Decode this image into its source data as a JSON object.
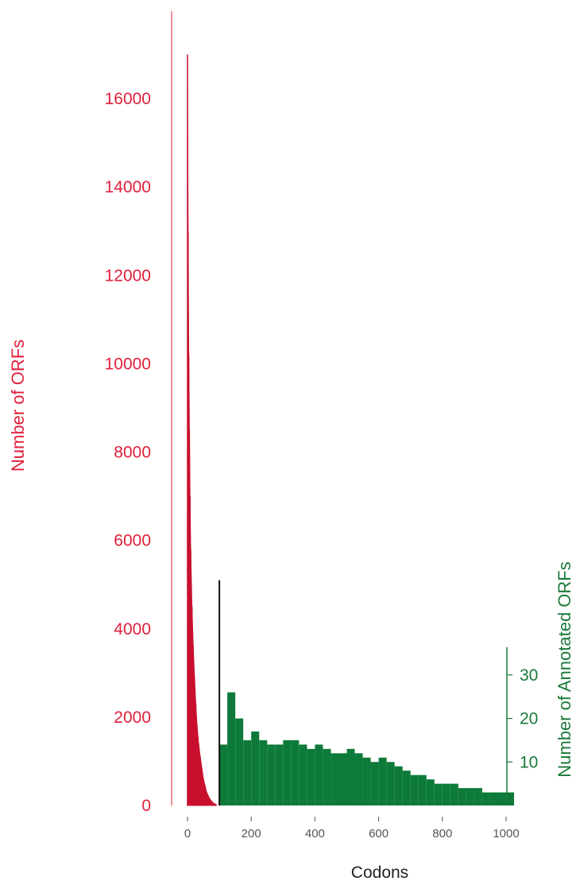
{
  "chart_data": {
    "type": "bar",
    "xlabel": "Codons",
    "ylabel_left": "Number of ORFs",
    "ylabel_right": "Number of Annotated ORFs",
    "x_ticks": [
      0,
      200,
      400,
      600,
      800,
      1000
    ],
    "y_left_ticks": [
      0,
      2000,
      4000,
      6000,
      8000,
      10000,
      12000,
      14000,
      16000
    ],
    "y_right_ticks": [
      10,
      20,
      30
    ],
    "xlim": [
      -50,
      1000
    ],
    "ylim_left": [
      0,
      17800
    ],
    "ylim_right": [
      0,
      36
    ],
    "threshold_codons": 100,
    "threshold_height_orfs": 5100,
    "colors": {
      "all_orfs": "#c8102e",
      "annotated_orfs": "#0d7a3a",
      "threshold": "#111111",
      "left_axis": "#e0203c",
      "right_axis": "#1a7a3a"
    },
    "series": [
      {
        "name": "Number of ORFs",
        "axis": "left",
        "x": [
          0,
          2,
          4,
          6,
          8,
          10,
          14,
          18,
          22,
          26,
          30,
          35,
          40,
          45,
          50,
          55,
          60,
          70,
          80,
          90
        ],
        "values": [
          17000,
          13000,
          10200,
          8500,
          7000,
          5800,
          4500,
          3600,
          2900,
          2300,
          1800,
          1400,
          1100,
          850,
          600,
          450,
          300,
          150,
          60,
          20
        ]
      },
      {
        "name": "Number of Annotated ORFs",
        "axis": "right",
        "x": [
          100,
          125,
          150,
          175,
          200,
          225,
          250,
          275,
          300,
          325,
          350,
          375,
          400,
          425,
          450,
          475,
          500,
          525,
          550,
          575,
          600,
          625,
          650,
          675,
          700,
          725,
          750,
          775,
          800,
          825,
          850,
          875,
          900,
          925,
          950,
          975,
          1000
        ],
        "values": [
          14,
          26,
          20,
          15,
          17,
          15,
          14,
          14,
          15,
          15,
          14,
          13,
          14,
          13,
          12,
          12,
          13,
          12,
          11,
          10,
          11,
          10,
          9,
          8,
          7,
          7,
          6,
          5,
          5,
          5,
          4,
          4,
          4,
          3,
          3,
          3,
          3
        ]
      }
    ]
  }
}
